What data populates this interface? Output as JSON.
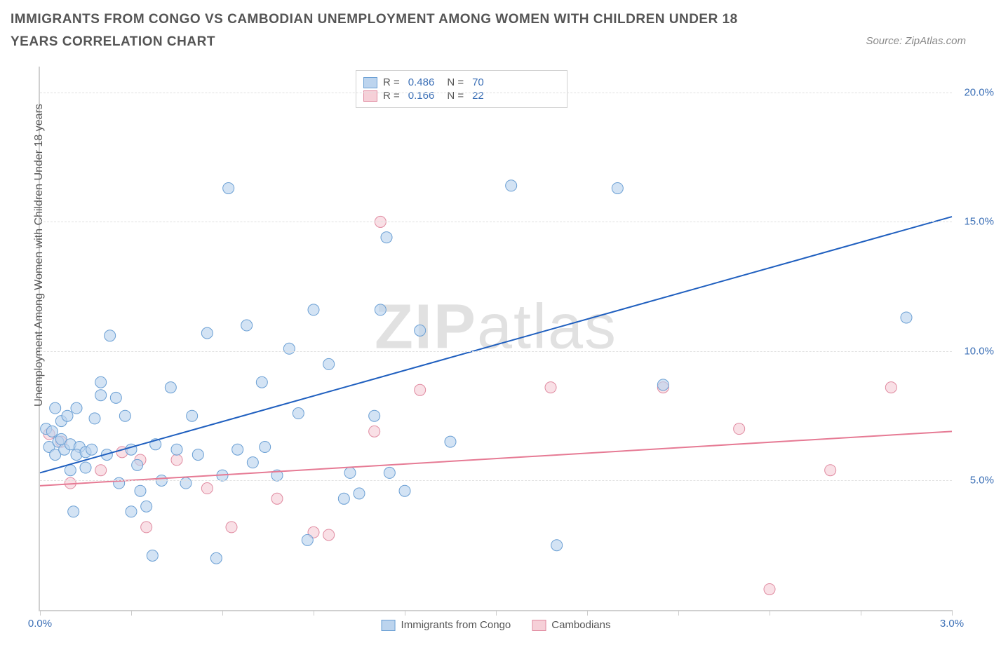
{
  "chart": {
    "type": "scatter",
    "title": "IMMIGRANTS FROM CONGO VS CAMBODIAN UNEMPLOYMENT AMONG WOMEN WITH CHILDREN UNDER 18 YEARS CORRELATION CHART",
    "source": "Source: ZipAtlas.com",
    "ylabel": "Unemployment Among Women with Children Under 18 years",
    "watermark": "ZIPatlas",
    "xlim": [
      0.0,
      3.0
    ],
    "ylim": [
      0.0,
      21.0
    ],
    "xaxis_labels": [
      {
        "v": 0.0,
        "label": "0.0%"
      },
      {
        "v": 3.0,
        "label": "3.0%"
      }
    ],
    "xticks": [
      0.0,
      0.3,
      0.6,
      0.9,
      1.2,
      1.5,
      1.8,
      2.1,
      2.4,
      2.7,
      3.0
    ],
    "ygrid": [
      {
        "v": 5.0,
        "label": "5.0%"
      },
      {
        "v": 10.0,
        "label": "10.0%"
      },
      {
        "v": 15.0,
        "label": "15.0%"
      },
      {
        "v": 20.0,
        "label": "20.0%"
      }
    ],
    "colors": {
      "series_a_fill": "#bcd4ee",
      "series_a_stroke": "#6a9fd4",
      "series_a_line": "#1f5fbf",
      "series_b_fill": "#f6d0d8",
      "series_b_stroke": "#e08aa0",
      "series_b_line": "#e67a94",
      "axis_text": "#3b6fb6",
      "grid": "#e0e0e0",
      "title_text": "#555555",
      "background": "#ffffff"
    },
    "marker_radius": 8,
    "marker_opacity": 0.65,
    "line_width": 2,
    "legend_top": [
      {
        "swatch": "a",
        "r": "0.486",
        "n": "70"
      },
      {
        "swatch": "b",
        "r": "0.166",
        "n": "22"
      }
    ],
    "legend_bottom": [
      {
        "swatch": "a",
        "label": "Immigrants from Congo"
      },
      {
        "swatch": "b",
        "label": "Cambodians"
      }
    ],
    "series_a": {
      "name": "Immigrants from Congo",
      "regression": {
        "x1": 0.0,
        "y1": 5.3,
        "x2": 3.0,
        "y2": 15.2
      },
      "points": [
        [
          0.02,
          7.0
        ],
        [
          0.03,
          6.3
        ],
        [
          0.04,
          6.9
        ],
        [
          0.05,
          7.8
        ],
        [
          0.05,
          6.0
        ],
        [
          0.06,
          6.5
        ],
        [
          0.07,
          7.3
        ],
        [
          0.07,
          6.6
        ],
        [
          0.08,
          6.2
        ],
        [
          0.09,
          7.5
        ],
        [
          0.1,
          6.4
        ],
        [
          0.1,
          5.4
        ],
        [
          0.11,
          3.8
        ],
        [
          0.13,
          6.3
        ],
        [
          0.12,
          7.8
        ],
        [
          0.12,
          6.0
        ],
        [
          0.15,
          5.5
        ],
        [
          0.15,
          6.1
        ],
        [
          0.17,
          6.2
        ],
        [
          0.18,
          7.4
        ],
        [
          0.2,
          8.8
        ],
        [
          0.2,
          8.3
        ],
        [
          0.22,
          6.0
        ],
        [
          0.23,
          10.6
        ],
        [
          0.25,
          8.2
        ],
        [
          0.26,
          4.9
        ],
        [
          0.28,
          7.5
        ],
        [
          0.3,
          6.2
        ],
        [
          0.3,
          3.8
        ],
        [
          0.32,
          5.6
        ],
        [
          0.33,
          4.6
        ],
        [
          0.35,
          4.0
        ],
        [
          0.37,
          2.1
        ],
        [
          0.38,
          6.4
        ],
        [
          0.4,
          5.0
        ],
        [
          0.43,
          8.6
        ],
        [
          0.45,
          6.2
        ],
        [
          0.48,
          4.9
        ],
        [
          0.5,
          7.5
        ],
        [
          0.52,
          6.0
        ],
        [
          0.55,
          10.7
        ],
        [
          0.58,
          2.0
        ],
        [
          0.6,
          5.2
        ],
        [
          0.62,
          16.3
        ],
        [
          0.65,
          6.2
        ],
        [
          0.68,
          11.0
        ],
        [
          0.7,
          5.7
        ],
        [
          0.73,
          8.8
        ],
        [
          0.74,
          6.3
        ],
        [
          0.78,
          5.2
        ],
        [
          0.82,
          10.1
        ],
        [
          0.85,
          7.6
        ],
        [
          0.88,
          2.7
        ],
        [
          0.9,
          11.6
        ],
        [
          0.95,
          9.5
        ],
        [
          1.0,
          4.3
        ],
        [
          1.02,
          5.3
        ],
        [
          1.05,
          4.5
        ],
        [
          1.1,
          7.5
        ],
        [
          1.14,
          14.4
        ],
        [
          1.12,
          11.6
        ],
        [
          1.15,
          5.3
        ],
        [
          1.2,
          4.6
        ],
        [
          1.25,
          10.8
        ],
        [
          1.35,
          6.5
        ],
        [
          1.55,
          16.4
        ],
        [
          1.7,
          2.5
        ],
        [
          1.9,
          16.3
        ],
        [
          2.05,
          8.7
        ],
        [
          2.85,
          11.3
        ]
      ]
    },
    "series_b": {
      "name": "Cambodians",
      "regression": {
        "x1": 0.0,
        "y1": 4.8,
        "x2": 3.0,
        "y2": 6.9
      },
      "points": [
        [
          0.03,
          6.8
        ],
        [
          0.07,
          6.5
        ],
        [
          0.1,
          4.9
        ],
        [
          0.2,
          5.4
        ],
        [
          0.27,
          6.1
        ],
        [
          0.33,
          5.8
        ],
        [
          0.35,
          3.2
        ],
        [
          0.45,
          5.8
        ],
        [
          0.55,
          4.7
        ],
        [
          0.63,
          3.2
        ],
        [
          0.78,
          4.3
        ],
        [
          0.9,
          3.0
        ],
        [
          0.95,
          2.9
        ],
        [
          1.1,
          6.9
        ],
        [
          1.12,
          15.0
        ],
        [
          1.25,
          8.5
        ],
        [
          1.68,
          8.6
        ],
        [
          2.05,
          8.6
        ],
        [
          2.3,
          7.0
        ],
        [
          2.4,
          0.8
        ],
        [
          2.6,
          5.4
        ],
        [
          2.8,
          8.6
        ]
      ]
    }
  }
}
